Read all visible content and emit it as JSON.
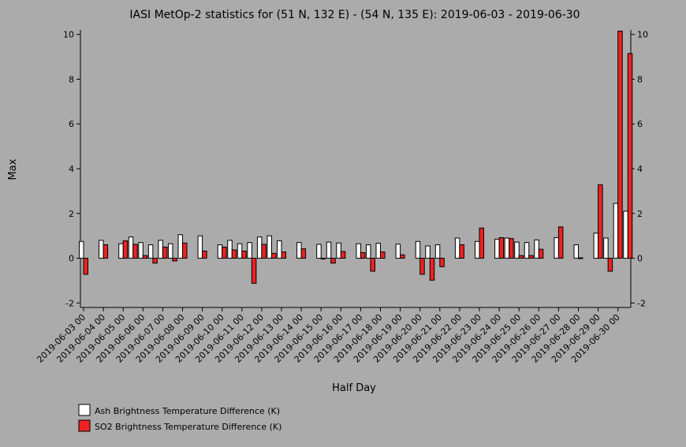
{
  "chart_data": {
    "type": "bar",
    "title": "IASI MetOp-2 statistics for (51 N, 132 E) - (54 N, 135 E): 2019-06-03 - 2019-06-30",
    "xlabel": "Half Day",
    "ylabel": "Max",
    "ylim": [
      -2.2,
      10.2
    ],
    "yticks": [
      -2,
      0,
      2,
      4,
      6,
      8,
      10
    ],
    "x_tick_labels": [
      "2019-06-03 00",
      "2019-06-04 00",
      "2019-06-05 00",
      "2019-06-06 00",
      "2019-06-07 00",
      "2019-06-08 00",
      "2019-06-09 00",
      "2019-06-10 00",
      "2019-06-11 00",
      "2019-06-12 00",
      "2019-06-13 00",
      "2019-06-14 00",
      "2019-06-15 00",
      "2019-06-16 00",
      "2019-06-17 00",
      "2019-06-18 00",
      "2019-06-19 00",
      "2019-06-20 00",
      "2019-06-21 00",
      "2019-06-22 00",
      "2019-06-23 00",
      "2019-06-24 00",
      "2019-06-25 00",
      "2019-06-26 00",
      "2019-06-27 00",
      "2019-06-28 00",
      "2019-06-29 00",
      "2019-06-30 00"
    ],
    "legend_placement": "bottom-left",
    "grid": false,
    "series": [
      {
        "name": "Ash Brightness Temperature Difference (K)",
        "color": "#ffffff",
        "values": [
          0.75,
          null,
          0.8,
          null,
          0.65,
          0.95,
          0.7,
          0.6,
          0.8,
          0.65,
          1.05,
          null,
          1.0,
          null,
          0.6,
          0.8,
          0.65,
          0.7,
          0.95,
          1.0,
          0.78,
          null,
          0.7,
          null,
          0.62,
          0.72,
          0.68,
          null,
          0.65,
          0.6,
          0.67,
          null,
          0.63,
          null,
          0.75,
          0.55,
          0.6,
          null,
          0.9,
          null,
          0.75,
          null,
          0.85,
          0.9,
          0.72,
          0.7,
          0.82,
          null,
          0.92,
          null,
          0.6,
          null,
          1.12,
          0.9,
          2.45,
          2.1
        ]
      },
      {
        "name": "SO2 Brightness Temperature Difference (K)",
        "color": "#ee2222",
        "values": [
          -0.72,
          null,
          0.6,
          null,
          0.78,
          0.62,
          0.12,
          -0.22,
          0.5,
          -0.12,
          0.68,
          null,
          0.32,
          null,
          0.5,
          0.37,
          0.32,
          -1.12,
          0.62,
          0.22,
          0.28,
          null,
          0.42,
          null,
          0.0,
          -0.22,
          0.3,
          null,
          0.25,
          -0.58,
          0.28,
          null,
          0.15,
          null,
          -0.72,
          -0.98,
          -0.38,
          null,
          0.6,
          null,
          1.35,
          null,
          0.92,
          0.88,
          0.12,
          0.12,
          0.4,
          null,
          1.4,
          null,
          0.02,
          null,
          3.28,
          -0.58,
          10.15,
          9.15
        ]
      }
    ]
  }
}
